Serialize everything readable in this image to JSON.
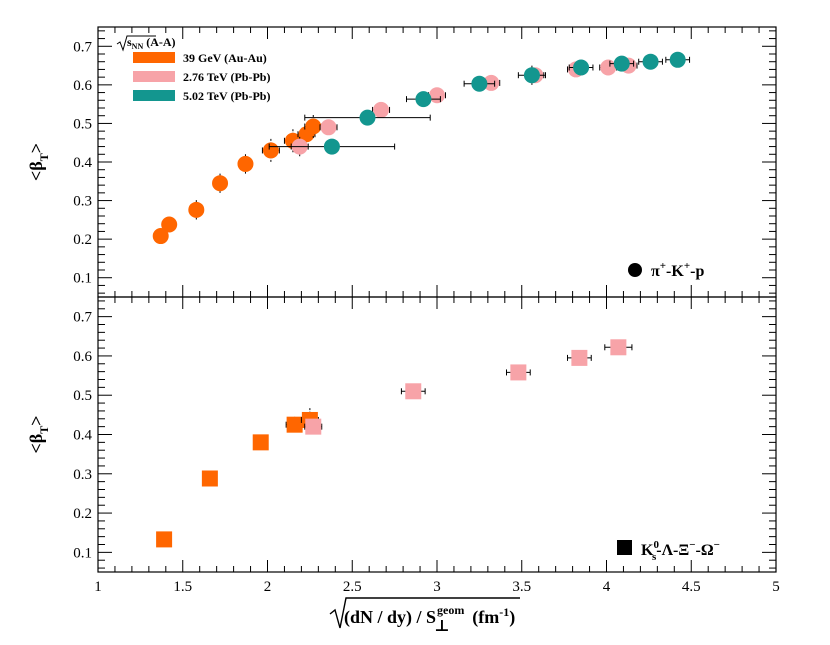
{
  "chart_data": {
    "type": "scatter",
    "x_label": "√((dN / dy) / S⊥geom) (fm⁻¹)",
    "x_label_parts": {
      "main": "(dN / dy) / S",
      "sup": "geom",
      "sub": "⊥",
      "unit": "(fm",
      "unit_sup": "-1",
      "unit_close": ")"
    },
    "xlim": [
      1,
      5
    ],
    "x_ticks": [
      1,
      1.5,
      2,
      2.5,
      3,
      3.5,
      4,
      4.5,
      5
    ],
    "x_tick_labels": [
      "1",
      "1.5",
      "2",
      "2.5",
      "3",
      "3.5",
      "4",
      "4.5",
      "5"
    ],
    "legend": {
      "header": "√sNN (A-A)",
      "header_sub": "NN",
      "header_tail": " (A-A)",
      "location": "top-left",
      "entries": [
        {
          "label": "39 GeV (Au-Au)",
          "color": "#ff6600"
        },
        {
          "label": "2.76 TeV (Pb-Pb)",
          "color": "#f7a3a8"
        },
        {
          "label": "5.02 TeV (Pb-Pb)",
          "color": "#13968f"
        }
      ]
    },
    "panels": [
      {
        "id": "top",
        "ylabel": "<βT>",
        "ylim": [
          0.05,
          0.75
        ],
        "y_ticks": [
          0.1,
          0.2,
          0.3,
          0.4,
          0.5,
          0.6,
          0.7
        ],
        "y_tick_labels": [
          "0.1",
          "0.2",
          "0.3",
          "0.4",
          "0.5",
          "0.6",
          "0.7"
        ],
        "label": "π+-K+-p",
        "marker": "circle",
        "series": [
          {
            "name": "39 GeV (Au-Au)",
            "color": "#ff6600",
            "points": [
              {
                "x": 1.37,
                "y": 0.208,
                "xerr": 0.04,
                "yerr": 0.015
              },
              {
                "x": 1.42,
                "y": 0.238,
                "xerr": 0.04,
                "yerr": 0.02
              },
              {
                "x": 1.58,
                "y": 0.276,
                "xerr": 0.04,
                "yerr": 0.025
              },
              {
                "x": 1.72,
                "y": 0.345,
                "xerr": 0.04,
                "yerr": 0.025
              },
              {
                "x": 1.87,
                "y": 0.395,
                "xerr": 0.04,
                "yerr": 0.025
              },
              {
                "x": 2.02,
                "y": 0.43,
                "xerr": 0.05,
                "yerr": 0.03
              },
              {
                "x": 2.15,
                "y": 0.455,
                "xerr": 0.05,
                "yerr": 0.03
              },
              {
                "x": 2.23,
                "y": 0.472,
                "xerr": 0.05,
                "yerr": 0.03
              },
              {
                "x": 2.27,
                "y": 0.492,
                "xerr": 0.05,
                "yerr": 0.03
              }
            ]
          },
          {
            "name": "2.76 TeV (Pb-Pb)",
            "color": "#f7a3a8",
            "points": [
              {
                "x": 2.19,
                "y": 0.44,
                "xerr": 0.05,
                "yerr": 0.025
              },
              {
                "x": 2.36,
                "y": 0.49,
                "xerr": 0.05,
                "yerr": 0.02
              },
              {
                "x": 2.67,
                "y": 0.535,
                "xerr": 0.05,
                "yerr": 0.015
              },
              {
                "x": 3.0,
                "y": 0.573,
                "xerr": 0.05,
                "yerr": 0.015
              },
              {
                "x": 3.32,
                "y": 0.605,
                "xerr": 0.05,
                "yerr": 0.015
              },
              {
                "x": 3.58,
                "y": 0.625,
                "xerr": 0.05,
                "yerr": 0.015
              },
              {
                "x": 3.82,
                "y": 0.64,
                "xerr": 0.05,
                "yerr": 0.015
              },
              {
                "x": 4.01,
                "y": 0.645,
                "xerr": 0.05,
                "yerr": 0.015
              },
              {
                "x": 4.13,
                "y": 0.65,
                "xerr": 0.05,
                "yerr": 0.015
              }
            ]
          },
          {
            "name": "5.02 TeV (Pb-Pb)",
            "color": "#13968f",
            "points": [
              {
                "x": 2.38,
                "y": 0.44,
                "xerr": 0.37,
                "yerr": 0.01
              },
              {
                "x": 2.59,
                "y": 0.515,
                "xerr": 0.37,
                "yerr": 0.01
              },
              {
                "x": 2.92,
                "y": 0.563,
                "xerr": 0.1,
                "yerr": 0.01
              },
              {
                "x": 3.25,
                "y": 0.603,
                "xerr": 0.09,
                "yerr": 0.01
              },
              {
                "x": 3.56,
                "y": 0.625,
                "xerr": 0.08,
                "yerr": 0.025
              },
              {
                "x": 3.85,
                "y": 0.645,
                "xerr": 0.07,
                "yerr": 0.01
              },
              {
                "x": 4.09,
                "y": 0.655,
                "xerr": 0.07,
                "yerr": 0.01
              },
              {
                "x": 4.26,
                "y": 0.66,
                "xerr": 0.07,
                "yerr": 0.01
              },
              {
                "x": 4.42,
                "y": 0.665,
                "xerr": 0.07,
                "yerr": 0.01
              }
            ]
          }
        ]
      },
      {
        "id": "bottom",
        "ylabel": "<βT>",
        "ylim": [
          0.05,
          0.75
        ],
        "y_ticks": [
          0.1,
          0.2,
          0.3,
          0.4,
          0.5,
          0.6,
          0.7
        ],
        "y_tick_labels": [
          "0.1",
          "0.2",
          "0.3",
          "0.4",
          "0.5",
          "0.6",
          "0.7"
        ],
        "label": "K0s-Λ-Ξ−-Ω−",
        "marker": "square",
        "series": [
          {
            "name": "39 GeV (Au-Au)",
            "color": "#ff6600",
            "points": [
              {
                "x": 1.39,
                "y": 0.133,
                "xerr": 0.04,
                "yerr": 0.01
              },
              {
                "x": 1.66,
                "y": 0.288,
                "xerr": 0.04,
                "yerr": 0.015
              },
              {
                "x": 1.96,
                "y": 0.38,
                "xerr": 0.04,
                "yerr": 0.015
              },
              {
                "x": 2.16,
                "y": 0.425,
                "xerr": 0.05,
                "yerr": 0.02
              },
              {
                "x": 2.25,
                "y": 0.437,
                "xerr": 0.05,
                "yerr": 0.03
              }
            ]
          },
          {
            "name": "2.76 TeV (Pb-Pb)",
            "color": "#f7a3a8",
            "points": [
              {
                "x": 2.27,
                "y": 0.42,
                "xerr": 0.05,
                "yerr": 0.01
              },
              {
                "x": 2.86,
                "y": 0.51,
                "xerr": 0.07,
                "yerr": 0.01
              },
              {
                "x": 3.48,
                "y": 0.558,
                "xerr": 0.07,
                "yerr": 0.01
              },
              {
                "x": 3.84,
                "y": 0.595,
                "xerr": 0.07,
                "yerr": 0.01
              },
              {
                "x": 4.07,
                "y": 0.622,
                "xerr": 0.08,
                "yerr": 0.01
              }
            ]
          }
        ]
      }
    ]
  }
}
